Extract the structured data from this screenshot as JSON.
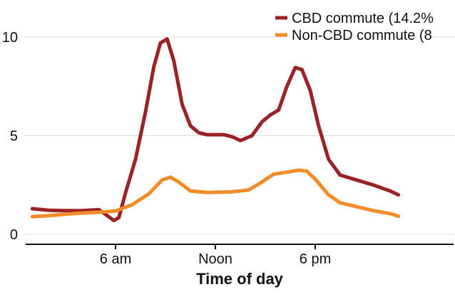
{
  "chart_data": {
    "type": "line",
    "xlabel": "Time of day",
    "ylabel": "",
    "x_ticks": [
      {
        "x": 6,
        "label": "6 am"
      },
      {
        "x": 12,
        "label": "Noon"
      },
      {
        "x": 18,
        "label": "6 pm"
      }
    ],
    "y_ticks": [
      {
        "y": 0,
        "label": "0"
      },
      {
        "y": 5,
        "label": "5"
      },
      {
        "y": 10,
        "label": "10"
      }
    ],
    "xlim": [
      0,
      24
    ],
    "ylim": [
      0,
      10
    ],
    "grid": "horizontal",
    "legend": "top-right",
    "series": [
      {
        "name": "CBD commute (14.2%",
        "color": "#9b2226",
        "points": [
          [
            1.0,
            1.3
          ],
          [
            2.0,
            1.22
          ],
          [
            3.0,
            1.2
          ],
          [
            4.0,
            1.2
          ],
          [
            5.0,
            1.25
          ],
          [
            5.5,
            0.95
          ],
          [
            5.9,
            0.7
          ],
          [
            6.2,
            0.85
          ],
          [
            6.6,
            2.1
          ],
          [
            7.2,
            3.8
          ],
          [
            7.8,
            6.2
          ],
          [
            8.3,
            8.5
          ],
          [
            8.7,
            9.7
          ],
          [
            9.1,
            9.9
          ],
          [
            9.5,
            8.8
          ],
          [
            10.0,
            6.6
          ],
          [
            10.5,
            5.5
          ],
          [
            11.0,
            5.15
          ],
          [
            11.5,
            5.05
          ],
          [
            12.5,
            5.05
          ],
          [
            13.0,
            4.95
          ],
          [
            13.5,
            4.75
          ],
          [
            14.2,
            5.0
          ],
          [
            14.8,
            5.7
          ],
          [
            15.3,
            6.05
          ],
          [
            15.8,
            6.3
          ],
          [
            16.3,
            7.5
          ],
          [
            16.8,
            8.45
          ],
          [
            17.2,
            8.35
          ],
          [
            17.7,
            7.3
          ],
          [
            18.2,
            5.5
          ],
          [
            18.8,
            3.8
          ],
          [
            19.5,
            3.0
          ],
          [
            20.5,
            2.75
          ],
          [
            21.5,
            2.5
          ],
          [
            22.5,
            2.2
          ],
          [
            23.0,
            2.0
          ]
        ]
      },
      {
        "name": "Non-CBD commute (8",
        "color": "#f28c28",
        "points": [
          [
            1.0,
            0.9
          ],
          [
            2.0,
            0.95
          ],
          [
            3.0,
            1.02
          ],
          [
            4.0,
            1.08
          ],
          [
            5.0,
            1.12
          ],
          [
            6.0,
            1.18
          ],
          [
            7.0,
            1.5
          ],
          [
            8.0,
            2.05
          ],
          [
            8.8,
            2.75
          ],
          [
            9.3,
            2.9
          ],
          [
            9.8,
            2.65
          ],
          [
            10.5,
            2.2
          ],
          [
            11.5,
            2.12
          ],
          [
            13.0,
            2.15
          ],
          [
            14.0,
            2.25
          ],
          [
            14.8,
            2.65
          ],
          [
            15.5,
            3.05
          ],
          [
            16.3,
            3.15
          ],
          [
            17.0,
            3.25
          ],
          [
            17.5,
            3.2
          ],
          [
            18.0,
            2.8
          ],
          [
            18.8,
            2.0
          ],
          [
            19.5,
            1.6
          ],
          [
            20.5,
            1.4
          ],
          [
            21.5,
            1.2
          ],
          [
            22.5,
            1.05
          ],
          [
            23.0,
            0.92
          ]
        ]
      }
    ]
  }
}
